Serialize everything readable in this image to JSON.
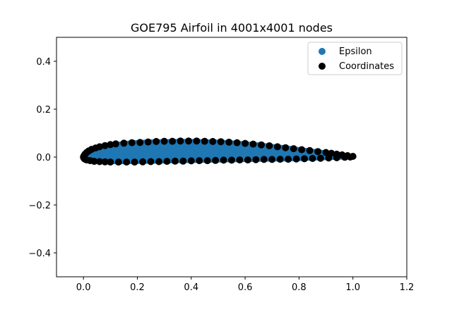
{
  "chart_data": {
    "type": "scatter",
    "title": "GOE795 Airfoil in 4001x4001 nodes",
    "xlabel": "",
    "ylabel": "",
    "xlim": [
      -0.1,
      1.2
    ],
    "ylim": [
      -0.5,
      0.5
    ],
    "xticks": [
      0.0,
      0.2,
      0.4,
      0.6,
      0.8,
      1.0,
      1.2
    ],
    "xtick_labels": [
      "0.0",
      "0.2",
      "0.4",
      "0.6",
      "0.8",
      "1.0",
      "1.2"
    ],
    "yticks": [
      -0.4,
      -0.2,
      0.0,
      0.2,
      0.4
    ],
    "ytick_labels": [
      "−0.4",
      "−0.2",
      "0.0",
      "0.2",
      "0.4"
    ],
    "grid": false,
    "legend_position": "top-right",
    "series": [
      {
        "name": "Epsilon",
        "color": "#1f77b4",
        "kind": "filled-region",
        "upper": [
          [
            0.0,
            0.0
          ],
          [
            0.005,
            0.012
          ],
          [
            0.0125,
            0.02
          ],
          [
            0.025,
            0.03
          ],
          [
            0.05,
            0.04
          ],
          [
            0.075,
            0.047
          ],
          [
            0.1,
            0.052
          ],
          [
            0.15,
            0.058
          ],
          [
            0.2,
            0.062
          ],
          [
            0.25,
            0.065
          ],
          [
            0.3,
            0.066
          ],
          [
            0.35,
            0.067
          ],
          [
            0.4,
            0.067
          ],
          [
            0.45,
            0.066
          ],
          [
            0.5,
            0.064
          ],
          [
            0.55,
            0.061
          ],
          [
            0.6,
            0.057
          ],
          [
            0.65,
            0.052
          ],
          [
            0.7,
            0.046
          ],
          [
            0.75,
            0.04
          ],
          [
            0.8,
            0.033
          ],
          [
            0.85,
            0.026
          ],
          [
            0.9,
            0.019
          ],
          [
            0.95,
            0.011
          ],
          [
            1.0,
            0.003
          ]
        ],
        "lower": [
          [
            1.0,
            0.0
          ],
          [
            0.95,
            -0.002
          ],
          [
            0.9,
            -0.004
          ],
          [
            0.85,
            -0.006
          ],
          [
            0.8,
            -0.008
          ],
          [
            0.75,
            -0.009
          ],
          [
            0.7,
            -0.01
          ],
          [
            0.65,
            -0.011
          ],
          [
            0.6,
            -0.012
          ],
          [
            0.55,
            -0.013
          ],
          [
            0.5,
            -0.014
          ],
          [
            0.45,
            -0.015
          ],
          [
            0.4,
            -0.016
          ],
          [
            0.35,
            -0.017
          ],
          [
            0.3,
            -0.018
          ],
          [
            0.25,
            -0.019
          ],
          [
            0.2,
            -0.02
          ],
          [
            0.15,
            -0.021
          ],
          [
            0.1,
            -0.021
          ],
          [
            0.075,
            -0.02
          ],
          [
            0.05,
            -0.018
          ],
          [
            0.025,
            -0.014
          ],
          [
            0.0125,
            -0.01
          ],
          [
            0.005,
            -0.006
          ],
          [
            0.0,
            0.0
          ]
        ]
      },
      {
        "name": "Coordinates",
        "color": "#000000",
        "kind": "points",
        "points": [
          [
            1.0,
            0.003
          ],
          [
            0.98,
            0.006
          ],
          [
            0.96,
            0.009
          ],
          [
            0.94,
            0.012
          ],
          [
            0.92,
            0.016
          ],
          [
            0.9,
            0.019
          ],
          [
            0.87,
            0.023
          ],
          [
            0.84,
            0.027
          ],
          [
            0.81,
            0.031
          ],
          [
            0.78,
            0.035
          ],
          [
            0.75,
            0.039
          ],
          [
            0.72,
            0.043
          ],
          [
            0.69,
            0.047
          ],
          [
            0.66,
            0.051
          ],
          [
            0.63,
            0.054
          ],
          [
            0.6,
            0.057
          ],
          [
            0.57,
            0.06
          ],
          [
            0.54,
            0.062
          ],
          [
            0.51,
            0.064
          ],
          [
            0.48,
            0.065
          ],
          [
            0.45,
            0.066
          ],
          [
            0.42,
            0.067
          ],
          [
            0.39,
            0.067
          ],
          [
            0.36,
            0.067
          ],
          [
            0.33,
            0.066
          ],
          [
            0.3,
            0.066
          ],
          [
            0.27,
            0.065
          ],
          [
            0.24,
            0.063
          ],
          [
            0.21,
            0.061
          ],
          [
            0.18,
            0.06
          ],
          [
            0.15,
            0.058
          ],
          [
            0.12,
            0.055
          ],
          [
            0.1,
            0.052
          ],
          [
            0.08,
            0.048
          ],
          [
            0.06,
            0.043
          ],
          [
            0.045,
            0.038
          ],
          [
            0.03,
            0.032
          ],
          [
            0.02,
            0.026
          ],
          [
            0.012,
            0.019
          ],
          [
            0.006,
            0.012
          ],
          [
            0.002,
            0.005
          ],
          [
            0.0,
            0.0
          ],
          [
            0.002,
            -0.005
          ],
          [
            0.006,
            -0.009
          ],
          [
            0.012,
            -0.012
          ],
          [
            0.025,
            -0.015
          ],
          [
            0.04,
            -0.018
          ],
          [
            0.06,
            -0.019
          ],
          [
            0.08,
            -0.02
          ],
          [
            0.1,
            -0.021
          ],
          [
            0.13,
            -0.021
          ],
          [
            0.16,
            -0.021
          ],
          [
            0.19,
            -0.021
          ],
          [
            0.22,
            -0.02
          ],
          [
            0.25,
            -0.019
          ],
          [
            0.28,
            -0.019
          ],
          [
            0.31,
            -0.018
          ],
          [
            0.34,
            -0.017
          ],
          [
            0.37,
            -0.017
          ],
          [
            0.4,
            -0.016
          ],
          [
            0.43,
            -0.015
          ],
          [
            0.46,
            -0.015
          ],
          [
            0.49,
            -0.014
          ],
          [
            0.52,
            -0.013
          ],
          [
            0.55,
            -0.013
          ],
          [
            0.58,
            -0.012
          ],
          [
            0.61,
            -0.012
          ],
          [
            0.64,
            -0.011
          ],
          [
            0.67,
            -0.01
          ],
          [
            0.7,
            -0.01
          ],
          [
            0.73,
            -0.009
          ],
          [
            0.76,
            -0.009
          ],
          [
            0.79,
            -0.008
          ],
          [
            0.82,
            -0.007
          ],
          [
            0.85,
            -0.006
          ],
          [
            0.88,
            -0.005
          ],
          [
            0.91,
            -0.004
          ],
          [
            0.94,
            -0.003
          ],
          [
            0.97,
            -0.001
          ],
          [
            0.99,
            0.0
          ]
        ]
      }
    ]
  }
}
